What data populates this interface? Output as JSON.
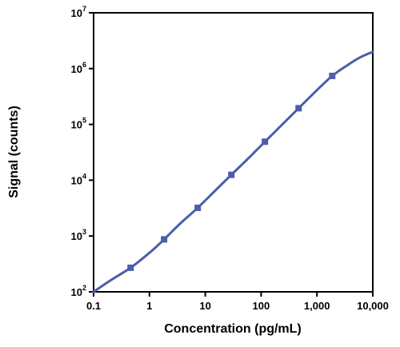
{
  "chart_data": {
    "type": "line",
    "title": "",
    "xlabel": "Concentration (pg/mL)",
    "ylabel": "Signal (counts)",
    "xscale": "log",
    "yscale": "log",
    "xlim": [
      0.1,
      10000
    ],
    "ylim": [
      100,
      10000000
    ],
    "x_ticks": [
      0.1,
      1,
      10,
      100,
      1000,
      10000
    ],
    "x_tick_labels": [
      "0.1",
      "1",
      "10",
      "100",
      "1,000",
      "10,000"
    ],
    "y_ticks": [
      100,
      1000,
      10000,
      100000,
      1000000,
      10000000
    ],
    "y_tick_labels": [
      {
        "base": "10",
        "exp": "2"
      },
      {
        "base": "10",
        "exp": "3"
      },
      {
        "base": "10",
        "exp": "4"
      },
      {
        "base": "10",
        "exp": "5"
      },
      {
        "base": "10",
        "exp": "6"
      },
      {
        "base": "10",
        "exp": "7"
      }
    ],
    "grid": false,
    "legend": "none",
    "series": [
      {
        "marker": "square",
        "color": "#4a5fa8",
        "points": [
          {
            "x": 0.46,
            "y": 270
          },
          {
            "x": 1.83,
            "y": 870
          },
          {
            "x": 7.32,
            "y": 3200
          },
          {
            "x": 29.3,
            "y": 12500
          },
          {
            "x": 117,
            "y": 49000
          },
          {
            "x": 469,
            "y": 195000
          },
          {
            "x": 1875,
            "y": 740000
          }
        ],
        "fit_curve": [
          {
            "x": 0.1,
            "y": 100
          },
          {
            "x": 0.2,
            "y": 160
          },
          {
            "x": 0.46,
            "y": 270
          },
          {
            "x": 1,
            "y": 500
          },
          {
            "x": 1.83,
            "y": 870
          },
          {
            "x": 3.5,
            "y": 1650
          },
          {
            "x": 7.32,
            "y": 3200
          },
          {
            "x": 15,
            "y": 6500
          },
          {
            "x": 29.3,
            "y": 12500
          },
          {
            "x": 60,
            "y": 25000
          },
          {
            "x": 117,
            "y": 49000
          },
          {
            "x": 240,
            "y": 100000
          },
          {
            "x": 469,
            "y": 195000
          },
          {
            "x": 950,
            "y": 390000
          },
          {
            "x": 1875,
            "y": 740000
          },
          {
            "x": 3500,
            "y": 1150000
          },
          {
            "x": 6000,
            "y": 1600000
          },
          {
            "x": 10000,
            "y": 2000000
          }
        ]
      }
    ]
  }
}
